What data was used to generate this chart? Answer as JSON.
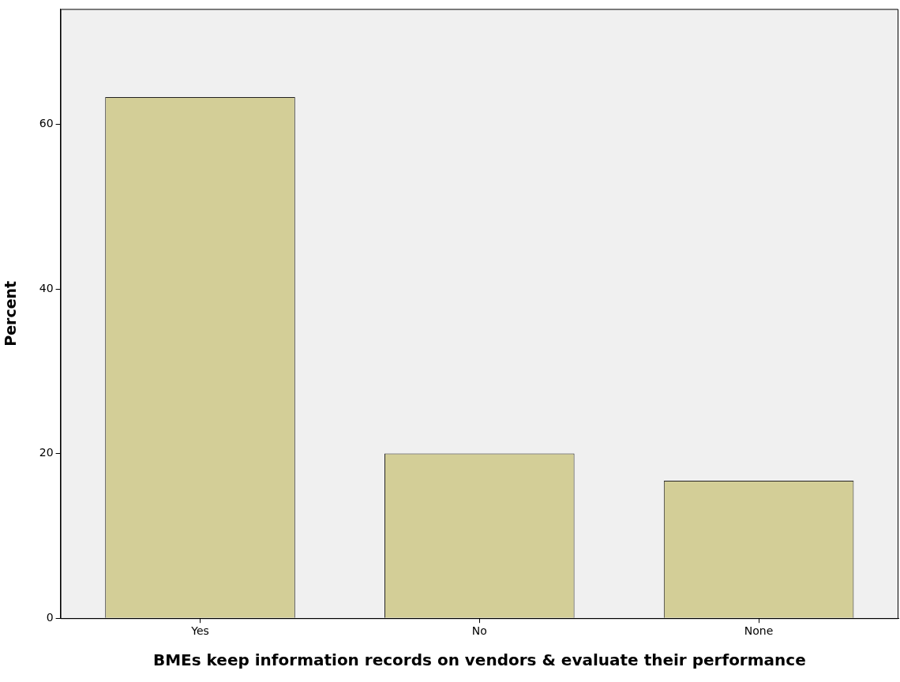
{
  "chart_data": {
    "type": "bar",
    "xlabel": "BMEs keep information records on vendors & evaluate their performance",
    "ylabel": "Percent",
    "categories": [
      "Yes",
      "No",
      "None"
    ],
    "values": [
      63.3,
      20.0,
      16.7
    ],
    "color": "#d3ce97",
    "ylim": [
      0,
      74
    ],
    "yticks": [
      0,
      20,
      40,
      60
    ]
  }
}
